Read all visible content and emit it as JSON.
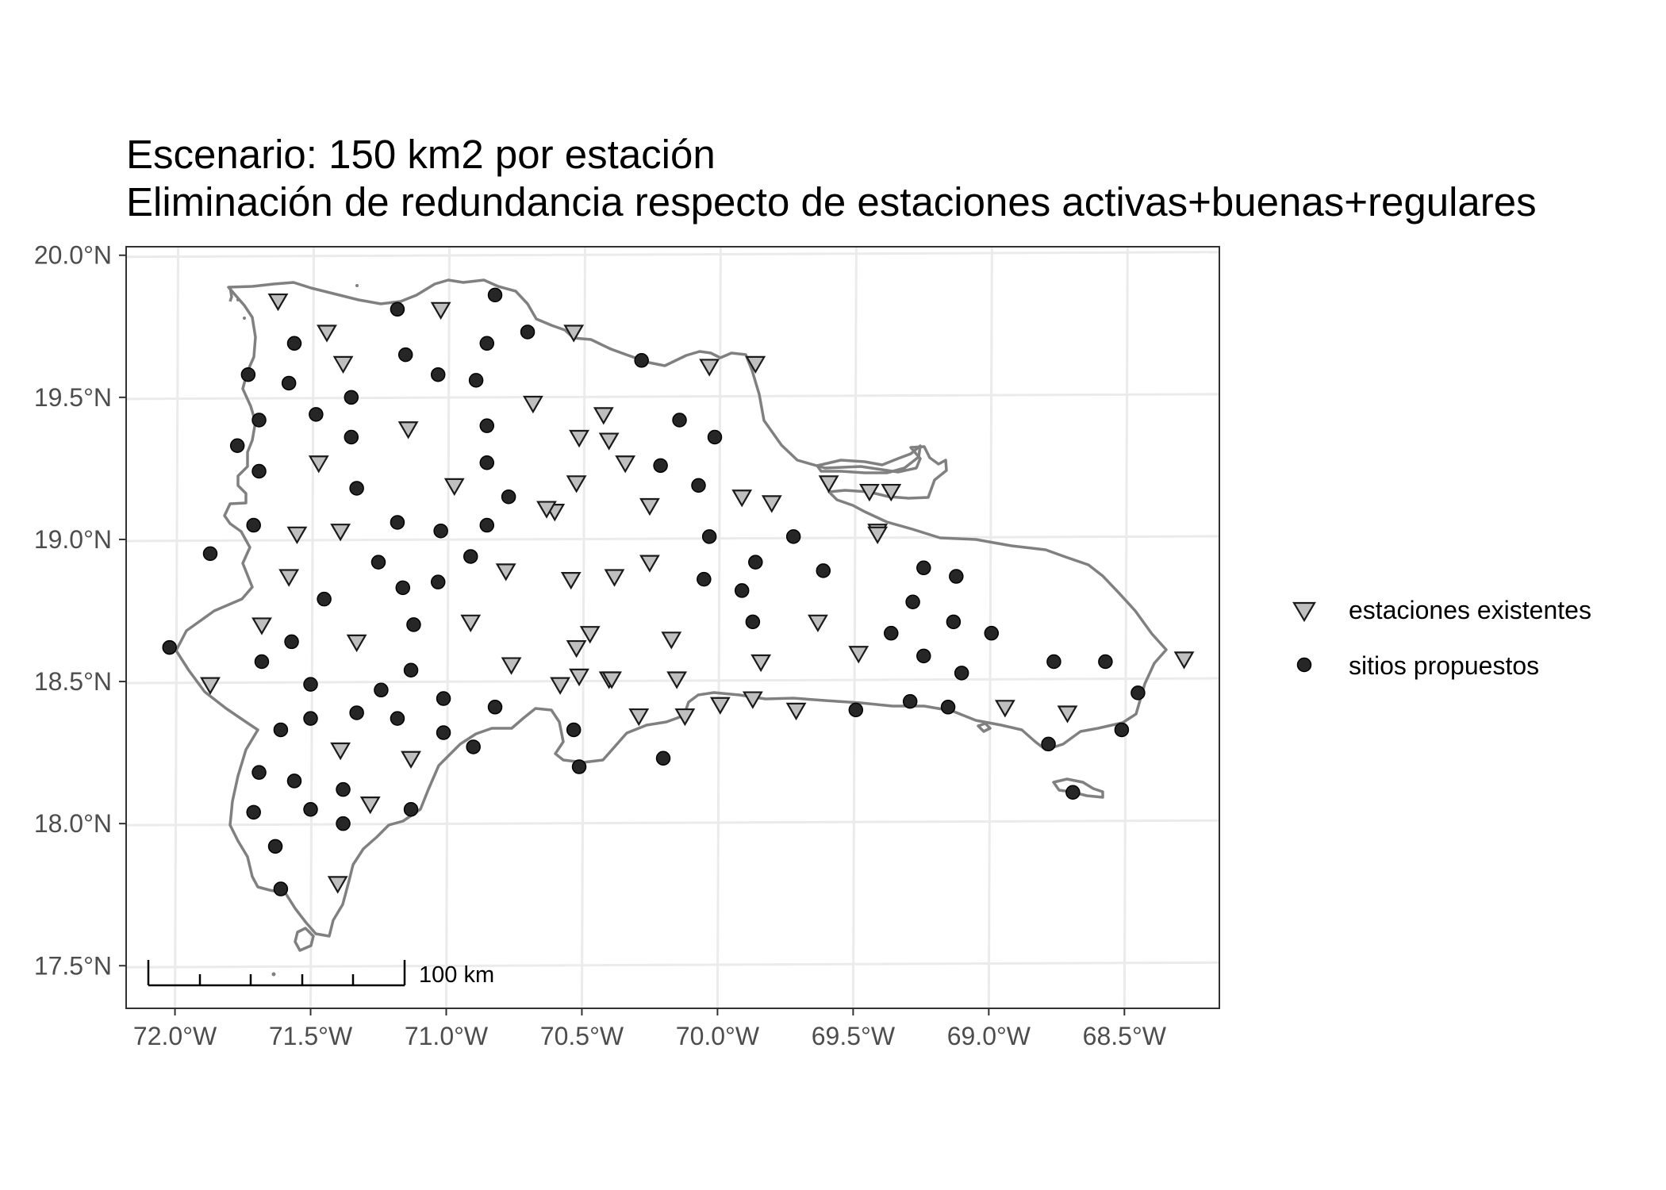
{
  "title": {
    "line1": "Escenario: 150 km2 por estación",
    "line2": "Eliminación de redundancia respecto de estaciones activas+buenas+regulares"
  },
  "colors": {
    "coastline": "#808080",
    "station_fill": "#bfbfbf",
    "site_fill": "#262626",
    "grid": "#ebebeb"
  },
  "legend": {
    "items": [
      {
        "label": "estaciones existentes",
        "symbol": "down-triangle-icon"
      },
      {
        "label": "sitios propuestos",
        "symbol": "filled-circle-icon"
      }
    ]
  },
  "scale_bar": {
    "label": "100 km"
  },
  "chart_data": {
    "type": "scatter",
    "title": "Escenario: 150 km2 por estación\nEliminación de redundancia respecto de estaciones activas+buenas+regulares",
    "xlabel": "",
    "ylabel": "",
    "xlim": [
      -72.18,
      -68.15
    ],
    "ylim": [
      17.35,
      20.03
    ],
    "x_ticks": [
      -72.0,
      -71.5,
      -71.0,
      -70.5,
      -70.0,
      -69.5,
      -69.0,
      -68.5
    ],
    "x_tick_labels": [
      "72.0°W",
      "71.5°W",
      "71.0°W",
      "70.5°W",
      "70.0°W",
      "69.5°W",
      "69.0°W",
      "68.5°W"
    ],
    "y_ticks": [
      17.5,
      18.0,
      18.5,
      19.0,
      19.5,
      20.0
    ],
    "y_tick_labels": [
      "17.5°N",
      "18.0°N",
      "18.5°N",
      "19.0°N",
      "19.5°N",
      "20.0°N"
    ],
    "grid": true,
    "legend_position": "right",
    "series": [
      {
        "name": "estaciones existentes",
        "marker": "triangle-down",
        "points": [
          [
            -71.62,
            19.84
          ],
          [
            -71.44,
            19.73
          ],
          [
            -71.38,
            19.62
          ],
          [
            -71.14,
            19.39
          ],
          [
            -71.47,
            19.27
          ],
          [
            -71.02,
            19.81
          ],
          [
            -70.68,
            19.48
          ],
          [
            -70.53,
            19.73
          ],
          [
            -70.42,
            19.44
          ],
          [
            -70.51,
            19.36
          ],
          [
            -70.4,
            19.35
          ],
          [
            -70.34,
            19.27
          ],
          [
            -70.52,
            19.2
          ],
          [
            -70.6,
            19.1
          ],
          [
            -70.63,
            19.11
          ],
          [
            -70.97,
            19.19
          ],
          [
            -70.25,
            19.12
          ],
          [
            -70.03,
            19.61
          ],
          [
            -69.86,
            19.62
          ],
          [
            -69.91,
            19.15
          ],
          [
            -69.8,
            19.13
          ],
          [
            -69.59,
            19.2
          ],
          [
            -69.44,
            19.17
          ],
          [
            -69.36,
            19.17
          ],
          [
            -69.41,
            19.03
          ],
          [
            -69.41,
            19.02
          ],
          [
            -71.55,
            19.02
          ],
          [
            -71.39,
            19.03
          ],
          [
            -71.58,
            18.87
          ],
          [
            -70.78,
            18.89
          ],
          [
            -70.54,
            18.86
          ],
          [
            -70.38,
            18.87
          ],
          [
            -70.25,
            18.92
          ],
          [
            -71.68,
            18.7
          ],
          [
            -70.91,
            18.71
          ],
          [
            -71.33,
            18.64
          ],
          [
            -70.47,
            18.67
          ],
          [
            -70.52,
            18.62
          ],
          [
            -70.58,
            18.49
          ],
          [
            -70.51,
            18.52
          ],
          [
            -70.4,
            18.51
          ],
          [
            -70.39,
            18.51
          ],
          [
            -70.17,
            18.65
          ],
          [
            -70.15,
            18.51
          ],
          [
            -70.76,
            18.56
          ],
          [
            -69.84,
            18.57
          ],
          [
            -69.63,
            18.71
          ],
          [
            -69.48,
            18.6
          ],
          [
            -71.87,
            18.49
          ],
          [
            -70.29,
            18.38
          ],
          [
            -70.12,
            18.38
          ],
          [
            -69.99,
            18.42
          ],
          [
            -69.87,
            18.44
          ],
          [
            -69.71,
            18.4
          ],
          [
            -68.94,
            18.41
          ],
          [
            -68.71,
            18.39
          ],
          [
            -68.28,
            18.58
          ],
          [
            -71.39,
            18.26
          ],
          [
            -71.13,
            18.23
          ],
          [
            -71.28,
            18.07
          ],
          [
            -71.4,
            17.79
          ]
        ]
      },
      {
        "name": "sitios propuestos",
        "marker": "circle",
        "points": [
          [
            -70.82,
            19.86
          ],
          [
            -71.18,
            19.81
          ],
          [
            -70.85,
            19.69
          ],
          [
            -70.7,
            19.73
          ],
          [
            -71.56,
            19.69
          ],
          [
            -71.15,
            19.65
          ],
          [
            -71.73,
            19.58
          ],
          [
            -71.58,
            19.55
          ],
          [
            -71.03,
            19.58
          ],
          [
            -70.89,
            19.56
          ],
          [
            -70.28,
            19.63
          ],
          [
            -71.35,
            19.5
          ],
          [
            -71.48,
            19.44
          ],
          [
            -71.69,
            19.42
          ],
          [
            -71.35,
            19.36
          ],
          [
            -70.85,
            19.4
          ],
          [
            -70.14,
            19.42
          ],
          [
            -70.01,
            19.36
          ],
          [
            -71.77,
            19.33
          ],
          [
            -71.69,
            19.24
          ],
          [
            -70.85,
            19.27
          ],
          [
            -70.21,
            19.26
          ],
          [
            -70.07,
            19.19
          ],
          [
            -71.33,
            19.18
          ],
          [
            -70.77,
            19.15
          ],
          [
            -71.71,
            19.05
          ],
          [
            -71.18,
            19.06
          ],
          [
            -71.02,
            19.03
          ],
          [
            -70.85,
            19.05
          ],
          [
            -70.03,
            19.01
          ],
          [
            -69.72,
            19.01
          ],
          [
            -71.87,
            18.95
          ],
          [
            -71.25,
            18.92
          ],
          [
            -70.91,
            18.94
          ],
          [
            -70.05,
            18.86
          ],
          [
            -69.86,
            18.92
          ],
          [
            -69.61,
            18.89
          ],
          [
            -69.24,
            18.9
          ],
          [
            -69.12,
            18.87
          ],
          [
            -71.16,
            18.83
          ],
          [
            -71.03,
            18.85
          ],
          [
            -69.91,
            18.82
          ],
          [
            -71.45,
            18.79
          ],
          [
            -69.28,
            18.78
          ],
          [
            -71.12,
            18.7
          ],
          [
            -69.87,
            18.71
          ],
          [
            -69.13,
            18.71
          ],
          [
            -69.36,
            18.67
          ],
          [
            -68.99,
            18.67
          ],
          [
            -71.57,
            18.64
          ],
          [
            -72.02,
            18.62
          ],
          [
            -71.68,
            18.57
          ],
          [
            -69.24,
            18.59
          ],
          [
            -68.76,
            18.57
          ],
          [
            -68.57,
            18.57
          ],
          [
            -71.13,
            18.54
          ],
          [
            -69.1,
            18.53
          ],
          [
            -71.5,
            18.49
          ],
          [
            -71.24,
            18.47
          ],
          [
            -68.45,
            18.46
          ],
          [
            -71.01,
            18.44
          ],
          [
            -70.82,
            18.41
          ],
          [
            -69.29,
            18.43
          ],
          [
            -69.15,
            18.41
          ],
          [
            -69.49,
            18.4
          ],
          [
            -71.33,
            18.39
          ],
          [
            -71.5,
            18.37
          ],
          [
            -71.18,
            18.37
          ],
          [
            -71.61,
            18.33
          ],
          [
            -71.01,
            18.32
          ],
          [
            -70.53,
            18.33
          ],
          [
            -70.9,
            18.27
          ],
          [
            -68.78,
            18.28
          ],
          [
            -68.51,
            18.33
          ],
          [
            -71.69,
            18.18
          ],
          [
            -71.56,
            18.15
          ],
          [
            -70.2,
            18.23
          ],
          [
            -70.51,
            18.2
          ],
          [
            -71.38,
            18.12
          ],
          [
            -68.69,
            18.11
          ],
          [
            -71.5,
            18.05
          ],
          [
            -71.13,
            18.05
          ],
          [
            -71.71,
            18.04
          ],
          [
            -71.38,
            18.0
          ],
          [
            -71.63,
            17.92
          ],
          [
            -71.61,
            17.77
          ]
        ]
      }
    ]
  }
}
